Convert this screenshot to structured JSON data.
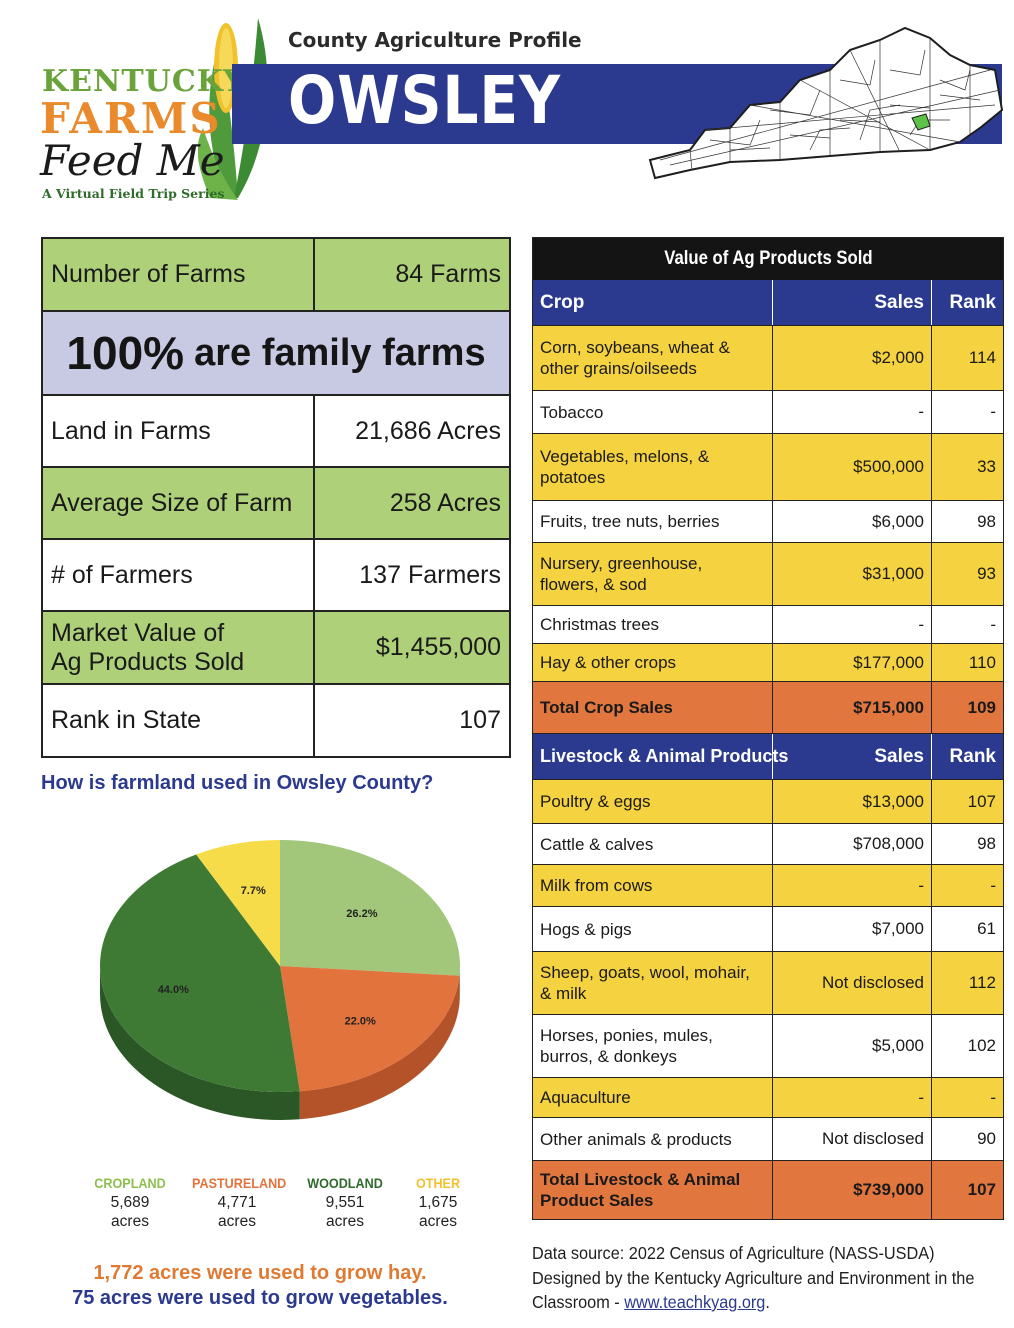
{
  "header": {
    "logo": {
      "line1": "KENTUCKY",
      "line2": "FARMS",
      "line3": "Feed Me",
      "tagline": "A Virtual Field Trip Series"
    },
    "subtitle": "County Agriculture Profile",
    "county": "OWSLEY"
  },
  "stats": {
    "farms_label": "Number of Farms",
    "farms_value": "84 Farms",
    "family_pct": "100%",
    "family_text": "are family farms",
    "land_label": "Land in Farms",
    "land_value": "21,686 Acres",
    "avg_label": "Average Size of Farm",
    "avg_value": "258 Acres",
    "farmers_label": "# of Farmers",
    "farmers_value": "137 Farmers",
    "market_label_1": "Market Value of",
    "market_label_2": "Ag Products Sold",
    "market_value": "$1,455,000",
    "rank_label": "Rank in State",
    "rank_value": "107"
  },
  "farmland": {
    "question": "How is farmland used in Owsley County?",
    "hay_note": "1,772 acres were used to grow hay.",
    "veg_note": "75 acres were used to grow vegetables."
  },
  "chart_data": {
    "type": "pie",
    "slices": [
      {
        "name": "CROPLAND",
        "acres": "5,689",
        "unit": "acres",
        "percent": 26.2,
        "label": "26.2%",
        "color": "#a2c77a",
        "side": "#7ea35a",
        "legend_color": "#8cbf4d"
      },
      {
        "name": "PASTURELAND",
        "acres": "4,771",
        "unit": "acres",
        "percent": 22.0,
        "label": "22.0%",
        "color": "#e2733d",
        "side": "#b4532a",
        "legend_color": "#e2733d"
      },
      {
        "name": "WOODLAND",
        "acres": "9,551",
        "unit": "acres",
        "percent": 44.0,
        "label": "44.0%",
        "color": "#3f7a35",
        "side": "#2b5626",
        "legend_color": "#2f6b2a"
      },
      {
        "name": "OTHER",
        "acres": "1,675",
        "unit": "acres",
        "percent": 7.7,
        "label": "7.7%",
        "color": "#f7dc4a",
        "side": "#c9ad2a",
        "legend_color": "#f2c12e"
      }
    ]
  },
  "value_table": {
    "title": "Value of Ag Products Sold",
    "crop_header": {
      "c1": "Crop",
      "c2": "Sales",
      "c3": "Rank"
    },
    "crops": [
      {
        "name": "Corn, soybeans, wheat & other grains/oilseeds",
        "sales": "$2,000",
        "rank": "114",
        "style": "yel"
      },
      {
        "name": "Tobacco",
        "sales": "-",
        "rank": "-",
        "style": "wht"
      },
      {
        "name": "Vegetables, melons, & potatoes",
        "sales": "$500,000",
        "rank": "33",
        "style": "yel"
      },
      {
        "name": "Fruits, tree nuts, berries",
        "sales": "$6,000",
        "rank": "98",
        "style": "wht"
      },
      {
        "name": "Nursery, greenhouse, flowers, & sod",
        "sales": "$31,000",
        "rank": "93",
        "style": "yel"
      },
      {
        "name": "Christmas trees",
        "sales": "-",
        "rank": "-",
        "style": "wht"
      },
      {
        "name": "Hay & other crops",
        "sales": "$177,000",
        "rank": "110",
        "style": "yel"
      },
      {
        "name": "Total Crop Sales",
        "sales": "$715,000",
        "rank": "109",
        "style": "org"
      }
    ],
    "livestock_header": {
      "c1": "Livestock & Animal Products",
      "c2": "Sales",
      "c3": "Rank"
    },
    "livestock": [
      {
        "name": "Poultry & eggs",
        "sales": "$13,000",
        "rank": "107",
        "style": "yel"
      },
      {
        "name": "Cattle & calves",
        "sales": "$708,000",
        "rank": "98",
        "style": "wht"
      },
      {
        "name": "Milk from cows",
        "sales": "-",
        "rank": "-",
        "style": "yel"
      },
      {
        "name": "Hogs & pigs",
        "sales": "$7,000",
        "rank": "61",
        "style": "wht"
      },
      {
        "name": "Sheep, goats, wool, mohair, & milk",
        "sales": "Not disclosed",
        "rank": "112",
        "style": "yel"
      },
      {
        "name": "Horses, ponies, mules, burros, & donkeys",
        "sales": "$5,000",
        "rank": "102",
        "style": "wht"
      },
      {
        "name": "Aquaculture",
        "sales": "-",
        "rank": "-",
        "style": "yel"
      },
      {
        "name": "Other animals & products",
        "sales": "Not disclosed",
        "rank": "90",
        "style": "wht"
      },
      {
        "name": "Total Livestock & Animal Product Sales",
        "sales": "$739,000",
        "rank": "107",
        "style": "org"
      }
    ]
  },
  "footer": {
    "line1": "Data source: 2022 Census of Agriculture (NASS-USDA)",
    "line2": "Designed by the Kentucky Agriculture and Environment in the",
    "line3_prefix": "Classroom - ",
    "link": "www.teachkyag.org",
    "line3_suffix": "."
  }
}
